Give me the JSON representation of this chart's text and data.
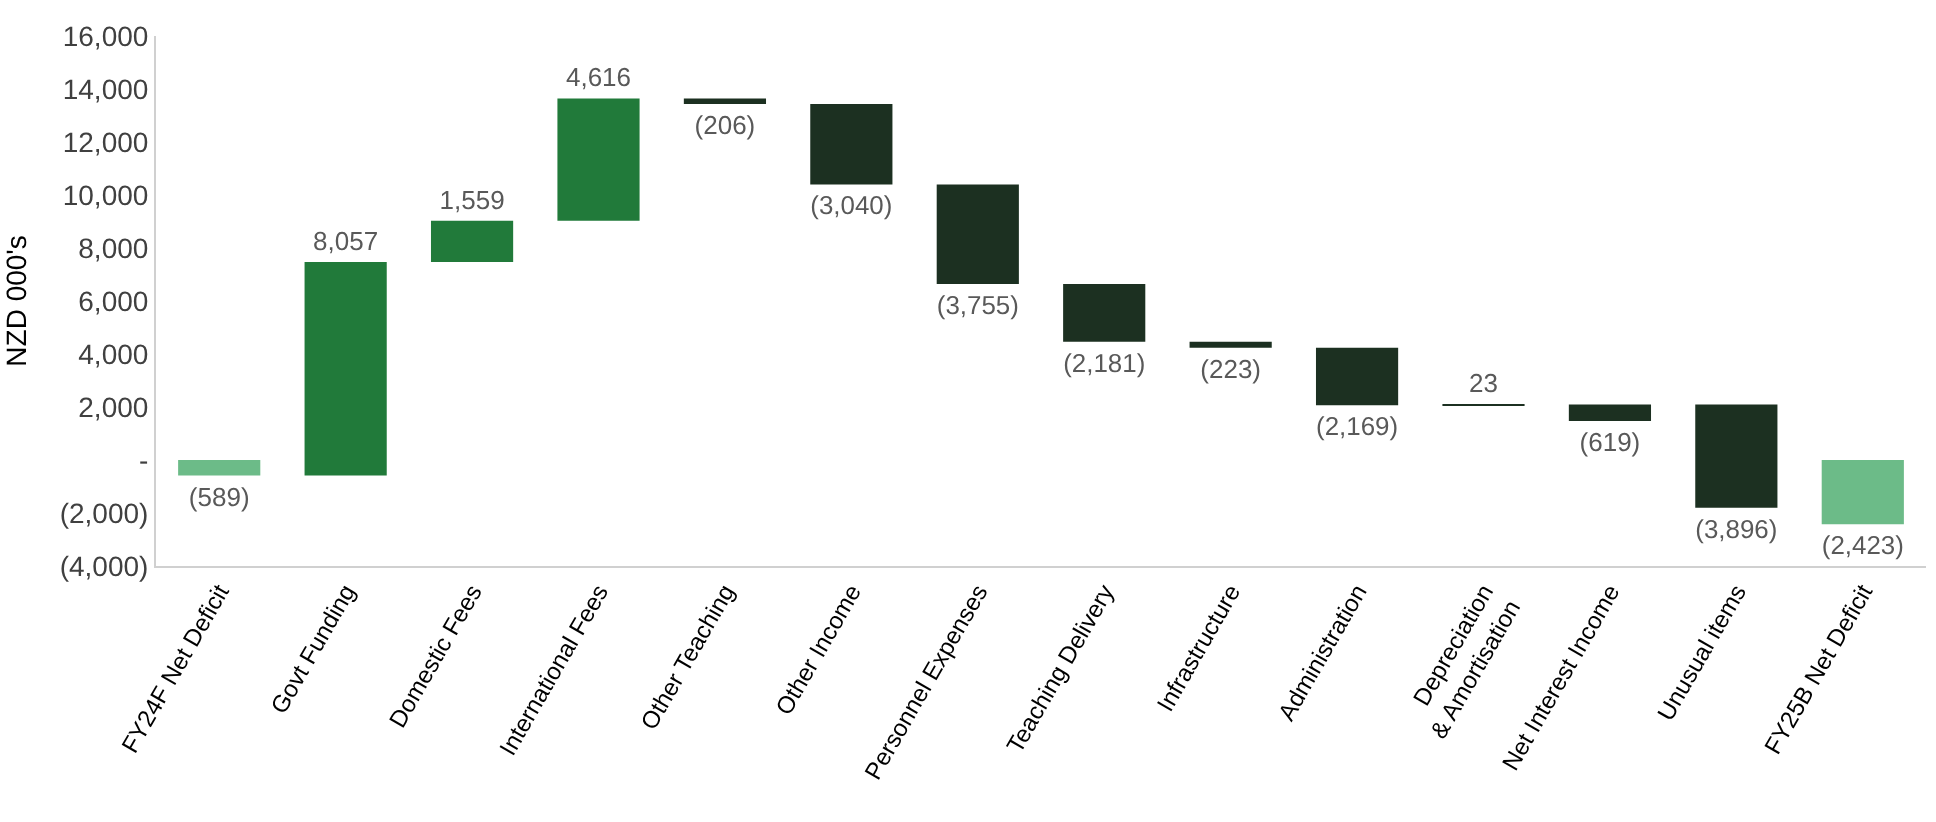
{
  "chart_data": {
    "type": "bar",
    "ylabel": "NZD 000's",
    "categories": [
      "FY24F Net Deficit",
      "Govt Funding",
      "Domestic Fees",
      "International Fees",
      "Other Teaching",
      "Other Income",
      "Personnel Expenses",
      "Teaching Delivery",
      "Infrastructure",
      "Administration",
      "Depreciation\n& Amortisation",
      "Net Interest Income",
      "Unusual items",
      "FY25B Net Deficit"
    ],
    "values": [
      -589,
      8057,
      1559,
      4616,
      -206,
      -3040,
      -3755,
      -2181,
      -223,
      -2169,
      23,
      -619,
      -3896,
      -2423
    ],
    "base": [
      0,
      -589,
      7468,
      9027,
      13643,
      13437,
      10397,
      6642,
      4461,
      4238,
      2069,
      2092,
      2092,
      0
    ],
    "colors": [
      "#6cbb88",
      "#217a3a",
      "#217a3a",
      "#217a3a",
      "#1c3021",
      "#1c3021",
      "#1c3021",
      "#1c3021",
      "#1c3021",
      "#1c3021",
      "#1c3021",
      "#1c3021",
      "#1c3021",
      "#6cbb88"
    ],
    "value_labels": [
      "(589)",
      "8,057",
      "1,559",
      "4,616",
      "(206)",
      "(3,040)",
      "(3,755)",
      "(2,181)",
      "(223)",
      "(2,169)",
      "23",
      "(619)",
      "(3,896)",
      "(2,423)"
    ],
    "ylim": [
      -4000,
      16000
    ],
    "yticks": [
      {
        "value": -4000,
        "label": "(4,000)"
      },
      {
        "value": -2000,
        "label": "(2,000)"
      },
      {
        "value": 0,
        "label": "-"
      },
      {
        "value": 2000,
        "label": "2,000"
      },
      {
        "value": 4000,
        "label": "4,000"
      },
      {
        "value": 6000,
        "label": "6,000"
      },
      {
        "value": 8000,
        "label": "8,000"
      },
      {
        "value": 10000,
        "label": "10,000"
      },
      {
        "value": 12000,
        "label": "12,000"
      },
      {
        "value": 14000,
        "label": "14,000"
      },
      {
        "value": 16000,
        "label": "16,000"
      }
    ]
  }
}
